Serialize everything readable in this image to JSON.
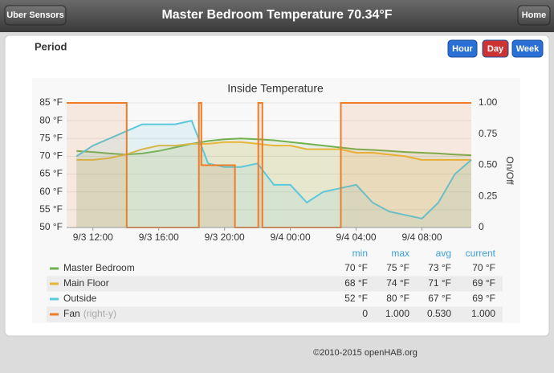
{
  "header": {
    "back_button": "Uber Sensors",
    "title": "Master Bedroom Temperature 70.34°F",
    "home_button": "Home"
  },
  "period": {
    "label": "Period",
    "buttons": [
      "Hour",
      "Day",
      "Week"
    ]
  },
  "chart_data": {
    "type": "line",
    "title": "Inside Temperature",
    "y2_label": "On/Off",
    "x": [
      11,
      12,
      13,
      14,
      15,
      16,
      17,
      18,
      19,
      20,
      21,
      22,
      23,
      24,
      25,
      26,
      27,
      28,
      29,
      30,
      31,
      32,
      33,
      34,
      35
    ],
    "xlim": [
      10.4,
      35
    ],
    "xticks": [
      {
        "value": 12,
        "label": "9/3 12:00"
      },
      {
        "value": 16,
        "label": "9/3 16:00"
      },
      {
        "value": 20,
        "label": "9/3 20:00"
      },
      {
        "value": 24,
        "label": "9/4 00:00"
      },
      {
        "value": 28,
        "label": "9/4 04:00"
      },
      {
        "value": 32,
        "label": "9/4 08:00"
      }
    ],
    "ylim": [
      50,
      85
    ],
    "yticks": [
      {
        "value": 50,
        "label": "50 °F"
      },
      {
        "value": 55,
        "label": "55 °F"
      },
      {
        "value": 60,
        "label": "60 °F"
      },
      {
        "value": 65,
        "label": "65 °F"
      },
      {
        "value": 70,
        "label": "70 °F"
      },
      {
        "value": 75,
        "label": "75 °F"
      },
      {
        "value": 80,
        "label": "80 °F"
      },
      {
        "value": 85,
        "label": "85 °F"
      }
    ],
    "y2lim": [
      0,
      1
    ],
    "y2ticks": [
      0,
      0.25,
      {
        "value": 0.5,
        "label": "0.50"
      },
      0.75,
      {
        "value": 1,
        "label": "1.00"
      }
    ],
    "series": [
      {
        "name": "Master Bedroom",
        "color": "#72b050",
        "values": [
          71.5,
          71.2,
          70.8,
          70.5,
          70.8,
          71.5,
          72.5,
          73.5,
          74.3,
          74.8,
          75,
          74.8,
          74.5,
          74,
          73.5,
          73,
          72.5,
          72,
          71.8,
          71.5,
          71.2,
          71,
          70.8,
          70.5,
          70.3
        ]
      },
      {
        "name": "Main Floor",
        "color": "#e8b53a",
        "values": [
          69,
          69,
          69.5,
          70.5,
          72,
          73,
          73,
          73.5,
          73.5,
          74,
          74,
          73.5,
          73,
          73,
          72,
          72,
          72,
          71,
          71,
          70.5,
          70,
          69,
          69,
          69,
          69
        ]
      },
      {
        "name": "Outside",
        "color": "#5bc8dc",
        "values": [
          70,
          73,
          75,
          77,
          79,
          79,
          79,
          80,
          68,
          67,
          67,
          68,
          62,
          62,
          57,
          60,
          61,
          62,
          57,
          54.5,
          53.5,
          52.5,
          57,
          65,
          69
        ]
      },
      {
        "name": "Fan",
        "note": "(right-y)",
        "color": "#ee7d2a",
        "axis": "y2",
        "x": [
          10.4,
          14.05,
          14.05,
          18.44,
          18.44,
          18.59,
          18.59,
          20.63,
          20.63,
          22.05,
          22.05,
          22.3,
          22.3,
          27.07,
          27.07,
          35
        ],
        "values": [
          1,
          1,
          0,
          0,
          1,
          1,
          0.5,
          0.5,
          0,
          0,
          1,
          1,
          0,
          0,
          1,
          1
        ]
      }
    ]
  },
  "stats": {
    "columns": [
      "min",
      "max",
      "avg",
      "current"
    ],
    "rows": [
      [
        "70 °F",
        "75 °F",
        "73 °F",
        "70 °F"
      ],
      [
        "68 °F",
        "74 °F",
        "71 °F",
        "69 °F"
      ],
      [
        "52 °F",
        "80 °F",
        "67 °F",
        "69 °F"
      ],
      [
        "0",
        "1.000",
        "0.530",
        "1.000"
      ]
    ]
  },
  "footer": "©2010-2015 openHAB.org"
}
